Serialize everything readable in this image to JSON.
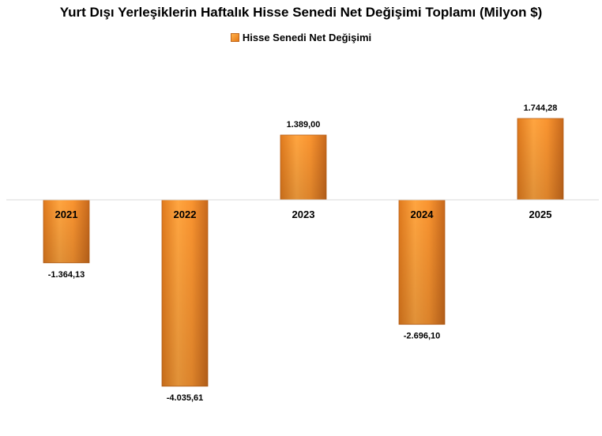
{
  "chart_data": {
    "type": "bar",
    "title": "Yurt Dışı Yerleşiklerin Haftalık Hisse Senedi Net Değişimi Toplamı (Milyon $)",
    "categories": [
      "2021",
      "2022",
      "2023",
      "2024",
      "2025"
    ],
    "series": [
      {
        "name": "Hisse Senedi Net Değişimi",
        "values": [
          -1364.13,
          -4035.61,
          1389.0,
          -2696.1,
          1744.28
        ],
        "data_labels": [
          "-1.364,13",
          "-4.035,61",
          "1.389,00",
          "-2.696,10",
          "1.744,28"
        ]
      }
    ],
    "xlabel": "",
    "ylabel": "",
    "ylim": [
      -4035.61,
      1744.28
    ],
    "grid": false,
    "legend_position": "top"
  },
  "colors": {
    "bar_light": "#ffb04a",
    "bar_mid": "#f7922a",
    "bar_dark": "#c96a1a",
    "axis_line": "#d9d9d9"
  }
}
